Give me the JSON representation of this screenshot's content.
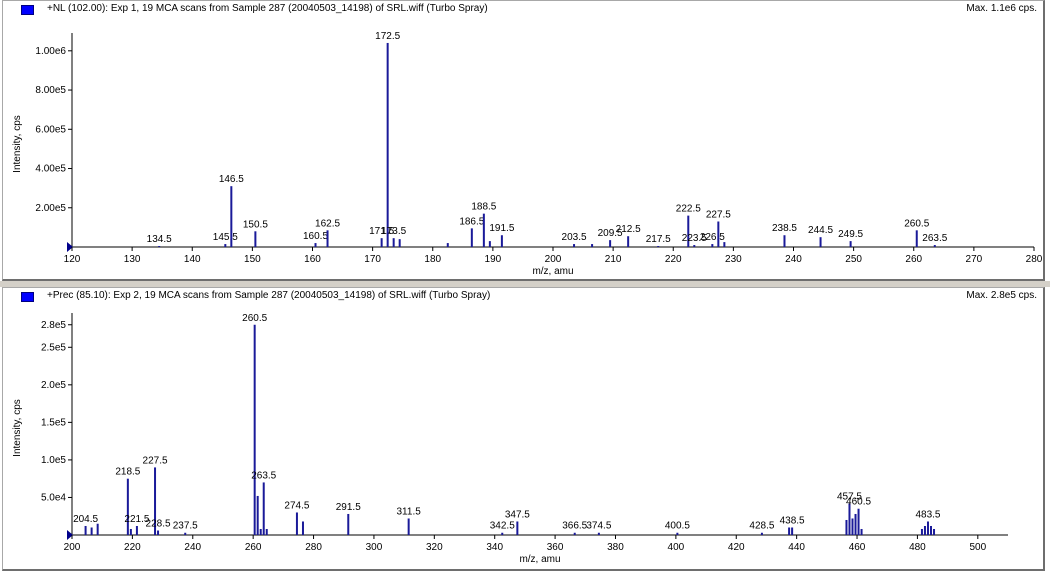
{
  "chart_data": [
    {
      "type": "bar",
      "title": "+NL (102.00): Exp 1, 19 MCA scans from Sample 287 (20040503_14198) of SRL.wiff (Turbo Spray)",
      "max_label": "Max. 1.1e6 cps.",
      "xlabel": "m/z, amu",
      "ylabel": "Intensity, cps",
      "xlim": [
        120,
        280
      ],
      "ylim": [
        0,
        1050000
      ],
      "x_ticks": [
        120,
        130,
        140,
        150,
        160,
        170,
        180,
        190,
        200,
        210,
        220,
        230,
        240,
        250,
        260,
        270,
        280
      ],
      "y_ticks": [
        {
          "value": 200000,
          "label": "2.00e5"
        },
        {
          "value": 400000,
          "label": "4.00e5"
        },
        {
          "value": 600000,
          "label": "6.00e5"
        },
        {
          "value": 800000,
          "label": "8.00e5"
        },
        {
          "value": 1000000,
          "label": "1.00e6"
        }
      ],
      "peaks": [
        {
          "x": 134.5,
          "y": 3000,
          "label": "134.5"
        },
        {
          "x": 145.5,
          "y": 15000,
          "label": "145.5"
        },
        {
          "x": 146.5,
          "y": 310000,
          "label": "146.5"
        },
        {
          "x": 150.5,
          "y": 80000,
          "label": "150.5"
        },
        {
          "x": 160.5,
          "y": 20000,
          "label": "160.5"
        },
        {
          "x": 162.5,
          "y": 85000,
          "label": "162.5"
        },
        {
          "x": 171.5,
          "y": 45000,
          "label": "171.5"
        },
        {
          "x": 172.5,
          "y": 1040000,
          "label": "172.5"
        },
        {
          "x": 173.5,
          "y": 45000,
          "label": "173.5"
        },
        {
          "x": 174.5,
          "y": 40000,
          "label": ""
        },
        {
          "x": 182.5,
          "y": 20000,
          "label": ""
        },
        {
          "x": 186.5,
          "y": 95000,
          "label": "186.5"
        },
        {
          "x": 188.5,
          "y": 170000,
          "label": "188.5"
        },
        {
          "x": 189.5,
          "y": 30000,
          "label": ""
        },
        {
          "x": 191.5,
          "y": 60000,
          "label": "191.5"
        },
        {
          "x": 203.5,
          "y": 15000,
          "label": "203.5"
        },
        {
          "x": 206.5,
          "y": 15000,
          "label": ""
        },
        {
          "x": 209.5,
          "y": 35000,
          "label": "209.5"
        },
        {
          "x": 212.5,
          "y": 55000,
          "label": "212.5"
        },
        {
          "x": 217.5,
          "y": 5000,
          "label": "217.5"
        },
        {
          "x": 222.5,
          "y": 160000,
          "label": "222.5"
        },
        {
          "x": 223.5,
          "y": 10000,
          "label": "223.5"
        },
        {
          "x": 226.5,
          "y": 15000,
          "label": "226.5"
        },
        {
          "x": 227.5,
          "y": 130000,
          "label": "227.5"
        },
        {
          "x": 228.5,
          "y": 25000,
          "label": ""
        },
        {
          "x": 238.5,
          "y": 60000,
          "label": "238.5"
        },
        {
          "x": 244.5,
          "y": 50000,
          "label": "244.5"
        },
        {
          "x": 249.5,
          "y": 30000,
          "label": "249.5"
        },
        {
          "x": 260.5,
          "y": 85000,
          "label": "260.5"
        },
        {
          "x": 263.5,
          "y": 10000,
          "label": "263.5"
        }
      ]
    },
    {
      "type": "bar",
      "title": "+Prec (85.10): Exp 2, 19 MCA scans from Sample 287 (20040503_14198) of SRL.wiff (Turbo Spray)",
      "max_label": "Max. 2.8e5 cps.",
      "xlabel": "m/z, amu",
      "ylabel": "Intensity, cps",
      "xlim": [
        200,
        510
      ],
      "ylim": [
        0,
        285000
      ],
      "x_ticks": [
        200,
        220,
        240,
        260,
        280,
        300,
        320,
        340,
        360,
        380,
        400,
        420,
        440,
        460,
        480,
        500
      ],
      "y_ticks": [
        {
          "value": 50000,
          "label": "5.0e4"
        },
        {
          "value": 100000,
          "label": "1.0e5"
        },
        {
          "value": 150000,
          "label": "1.5e5"
        },
        {
          "value": 200000,
          "label": "2.0e5"
        },
        {
          "value": 250000,
          "label": "2.5e5"
        },
        {
          "value": 280000,
          "label": "2.8e5"
        }
      ],
      "peaks": [
        {
          "x": 204.5,
          "y": 12000,
          "label": "204.5"
        },
        {
          "x": 206.5,
          "y": 10000,
          "label": ""
        },
        {
          "x": 208.5,
          "y": 15000,
          "label": ""
        },
        {
          "x": 218.5,
          "y": 75000,
          "label": "218.5"
        },
        {
          "x": 219.5,
          "y": 8000,
          "label": ""
        },
        {
          "x": 221.5,
          "y": 12000,
          "label": "221.5"
        },
        {
          "x": 227.5,
          "y": 90000,
          "label": "227.5"
        },
        {
          "x": 228.5,
          "y": 6000,
          "label": "228.5"
        },
        {
          "x": 237.5,
          "y": 3000,
          "label": "237.5"
        },
        {
          "x": 260.5,
          "y": 280000,
          "label": "260.5"
        },
        {
          "x": 261.5,
          "y": 52000,
          "label": ""
        },
        {
          "x": 262.5,
          "y": 8000,
          "label": ""
        },
        {
          "x": 263.5,
          "y": 70000,
          "label": "263.5"
        },
        {
          "x": 264.5,
          "y": 8000,
          "label": ""
        },
        {
          "x": 274.5,
          "y": 30000,
          "label": "274.5"
        },
        {
          "x": 276.5,
          "y": 18000,
          "label": ""
        },
        {
          "x": 291.5,
          "y": 28000,
          "label": "291.5"
        },
        {
          "x": 311.5,
          "y": 22000,
          "label": "311.5"
        },
        {
          "x": 342.5,
          "y": 3000,
          "label": "342.5"
        },
        {
          "x": 347.5,
          "y": 18000,
          "label": "347.5"
        },
        {
          "x": 366.5,
          "y": 3000,
          "label": "366.5"
        },
        {
          "x": 374.5,
          "y": 3000,
          "label": "374.5"
        },
        {
          "x": 400.5,
          "y": 3000,
          "label": "400.5"
        },
        {
          "x": 428.5,
          "y": 3000,
          "label": "428.5"
        },
        {
          "x": 437.5,
          "y": 10000,
          "label": ""
        },
        {
          "x": 438.5,
          "y": 10000,
          "label": "438.5"
        },
        {
          "x": 456.5,
          "y": 20000,
          "label": ""
        },
        {
          "x": 457.5,
          "y": 42000,
          "label": "457.5"
        },
        {
          "x": 458.5,
          "y": 22000,
          "label": ""
        },
        {
          "x": 459.5,
          "y": 28000,
          "label": ""
        },
        {
          "x": 460.5,
          "y": 35000,
          "label": "460.5"
        },
        {
          "x": 461.5,
          "y": 8000,
          "label": ""
        },
        {
          "x": 481.5,
          "y": 8000,
          "label": ""
        },
        {
          "x": 482.5,
          "y": 12000,
          "label": ""
        },
        {
          "x": 483.5,
          "y": 18000,
          "label": "483.5"
        },
        {
          "x": 484.5,
          "y": 12000,
          "label": ""
        },
        {
          "x": 485.5,
          "y": 8000,
          "label": ""
        }
      ]
    }
  ]
}
